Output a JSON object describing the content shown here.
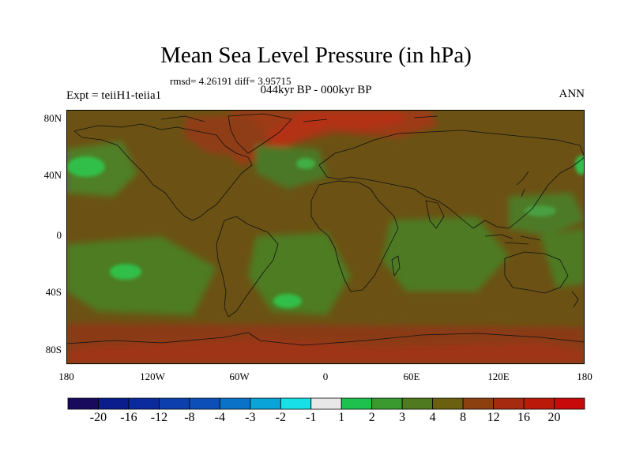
{
  "title": "Mean Sea Level Pressure (in hPa)",
  "subtitle": "rmsd= 4.26191 diff= 3.95715",
  "center_label": "044kyr BP - 000kyr BP",
  "left_label": "Expt = teiiH1-teiia1",
  "right_label": "ANN",
  "lat_ticks": [
    "80N",
    "40N",
    "0",
    "40S",
    "80S"
  ],
  "lon_ticks": [
    "180",
    "120W",
    "60W",
    "0",
    "60E",
    "120E",
    "180"
  ],
  "colorbar": {
    "labels": [
      "-20",
      "-16",
      "-12",
      "-8",
      "-4",
      "-3",
      "-2",
      "-1",
      "1",
      "2",
      "3",
      "4",
      "8",
      "12",
      "16",
      "20"
    ],
    "colors": [
      "#1a0a5e",
      "#0b1c8c",
      "#0a2a9e",
      "#0d3fae",
      "#0c4fb8",
      "#0a73c8",
      "#0aa4d8",
      "#17e1e6",
      "#e8e8e8",
      "#1ec04e",
      "#3a9a30",
      "#4f7a20",
      "#6b6010",
      "#8c4010",
      "#a62a10",
      "#bb1a0a",
      "#c80a0a"
    ]
  },
  "map": {
    "background_color": "#6b5010",
    "ocean_color": "#5d4e12",
    "positive_high_color": "#b43a10",
    "positive_mid_color": "#8a3e10",
    "green_low_color": "#4c7a24",
    "green_bright_color": "#2ec050"
  }
}
